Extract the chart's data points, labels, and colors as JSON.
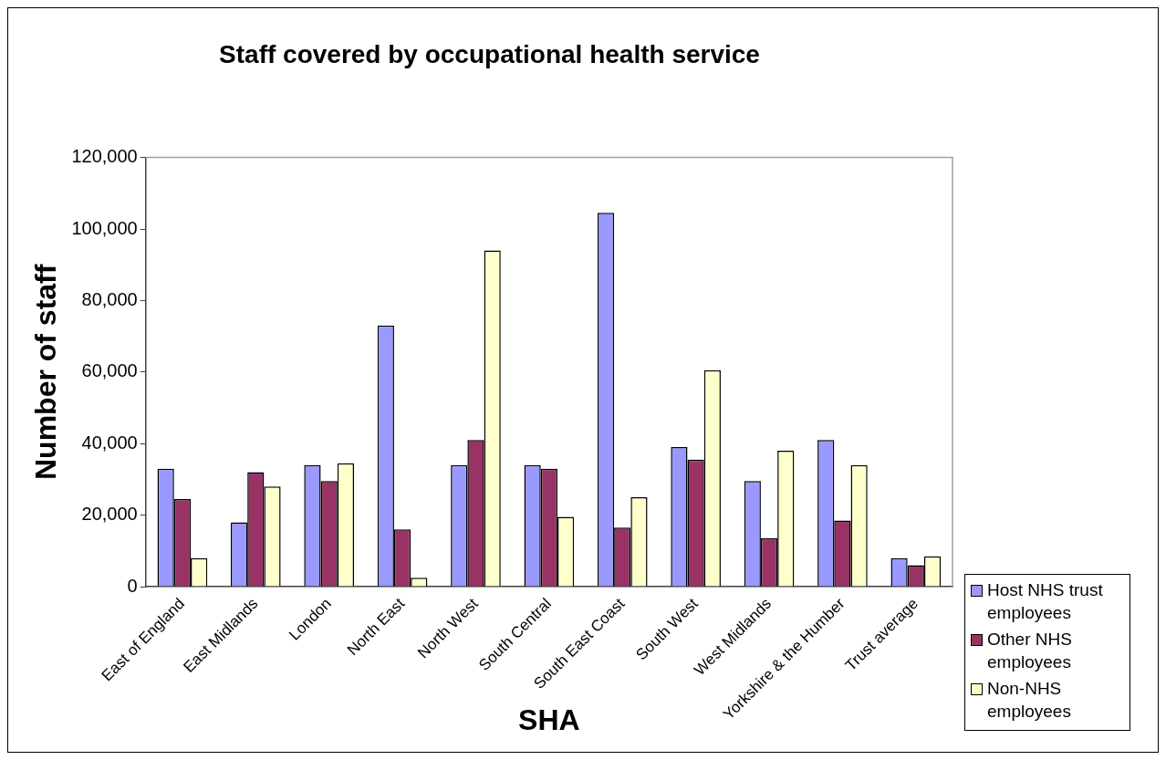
{
  "chart_data": {
    "type": "bar",
    "title": "Staff covered by occupational health service",
    "xlabel": "SHA",
    "ylabel": "Number of staff",
    "categories": [
      "East of England",
      "East Midlands",
      "London",
      "North East",
      "North West",
      "South Central",
      "South East Coast",
      "South West",
      "West Midlands",
      "Yorkshire & the Humber",
      "Trust average"
    ],
    "series": [
      {
        "name": "Host NHS trust employees",
        "color": "#9999ff",
        "values": [
          33000,
          18000,
          34000,
          73000,
          34000,
          34000,
          104500,
          39000,
          29500,
          41000,
          8000
        ]
      },
      {
        "name": "Other NHS employees",
        "color": "#993366",
        "values": [
          24500,
          32000,
          29500,
          16000,
          41000,
          33000,
          16500,
          35500,
          13500,
          18500,
          6000
        ]
      },
      {
        "name": "Non-NHS employees",
        "color": "#ffffcc",
        "values": [
          8000,
          28000,
          34500,
          2500,
          94000,
          19500,
          25000,
          60500,
          38000,
          34000,
          8500
        ]
      }
    ],
    "ylim": [
      0,
      120000
    ],
    "yticks": [
      0,
      {
        "value": 20000,
        "label": "20,000"
      },
      {
        "value": 40000,
        "label": "40,000"
      },
      {
        "value": 60000,
        "label": "60,000"
      },
      {
        "value": 80000,
        "label": "80,000"
      },
      {
        "value": 100000,
        "label": "100,000"
      },
      {
        "value": 120000,
        "label": "120,000"
      }
    ],
    "grid": false,
    "legend": "bottom right"
  }
}
